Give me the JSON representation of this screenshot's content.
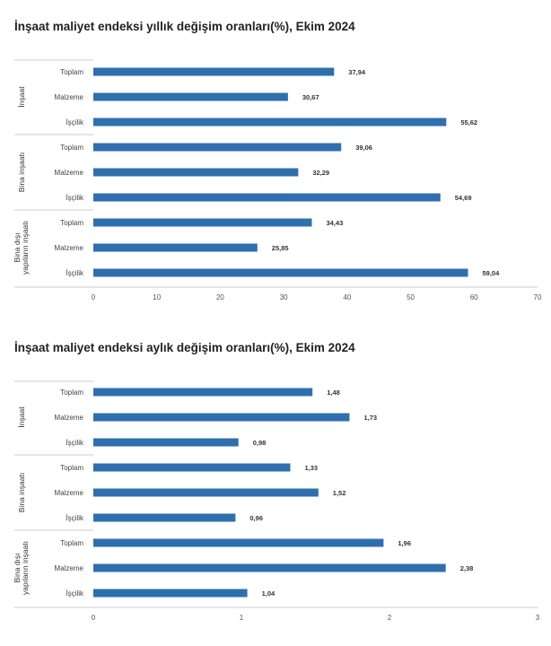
{
  "chart_data": [
    {
      "type": "bar",
      "orientation": "horizontal",
      "title": "İnşaat maliyet endeksi yıllık değişim oranları(%), Ekim 2024",
      "groups": [
        {
          "label": "İnşaat",
          "categories": [
            "Toplam",
            "Malzeme",
            "İşçilik"
          ],
          "values": [
            37.94,
            30.67,
            55.62
          ],
          "value_labels": [
            "37,94",
            "30,67",
            "55,62"
          ]
        },
        {
          "label": "Bina inşaatı",
          "categories": [
            "Toplam",
            "Malzeme",
            "İşçilik"
          ],
          "values": [
            39.06,
            32.29,
            54.69
          ],
          "value_labels": [
            "39,06",
            "32,29",
            "54,69"
          ]
        },
        {
          "label_lines": [
            "Bina dışı",
            "yapıların inşaatı"
          ],
          "categories": [
            "Toplam",
            "Malzeme",
            "İşçilik"
          ],
          "values": [
            34.43,
            25.85,
            59.04
          ],
          "value_labels": [
            "34,43",
            "25,85",
            "59,04"
          ]
        }
      ],
      "xlim": [
        0,
        70
      ],
      "xticks": [
        0,
        10,
        20,
        30,
        40,
        50,
        60,
        70
      ],
      "xtick_labels": [
        "0",
        "10",
        "20",
        "30",
        "40",
        "50",
        "60",
        "70"
      ],
      "bar_color": "#2f6fae",
      "xlabel": "",
      "ylabel": ""
    },
    {
      "type": "bar",
      "orientation": "horizontal",
      "title": "İnşaat maliyet endeksi aylık değişim oranları(%), Ekim 2024",
      "groups": [
        {
          "label": "İnşaat",
          "categories": [
            "Toplam",
            "Malzeme",
            "İşçilik"
          ],
          "values": [
            1.48,
            1.73,
            0.98
          ],
          "value_labels": [
            "1,48",
            "1,73",
            "0,98"
          ]
        },
        {
          "label": "Bina inşaatı",
          "categories": [
            "Toplam",
            "Malzeme",
            "İşçilik"
          ],
          "values": [
            1.33,
            1.52,
            0.96
          ],
          "value_labels": [
            "1,33",
            "1,52",
            "0,96"
          ]
        },
        {
          "label_lines": [
            "Bina dışı",
            "yapıların inşaatı"
          ],
          "categories": [
            "Toplam",
            "Malzeme",
            "İşçilik"
          ],
          "values": [
            1.96,
            2.38,
            1.04
          ],
          "value_labels": [
            "1,96",
            "2,38",
            "1,04"
          ]
        }
      ],
      "xlim": [
        0,
        3
      ],
      "xticks": [
        0,
        1,
        2,
        3
      ],
      "xtick_labels": [
        "0",
        "1",
        "2",
        "3"
      ],
      "bar_color": "#2f6fae",
      "xlabel": "",
      "ylabel": ""
    }
  ]
}
